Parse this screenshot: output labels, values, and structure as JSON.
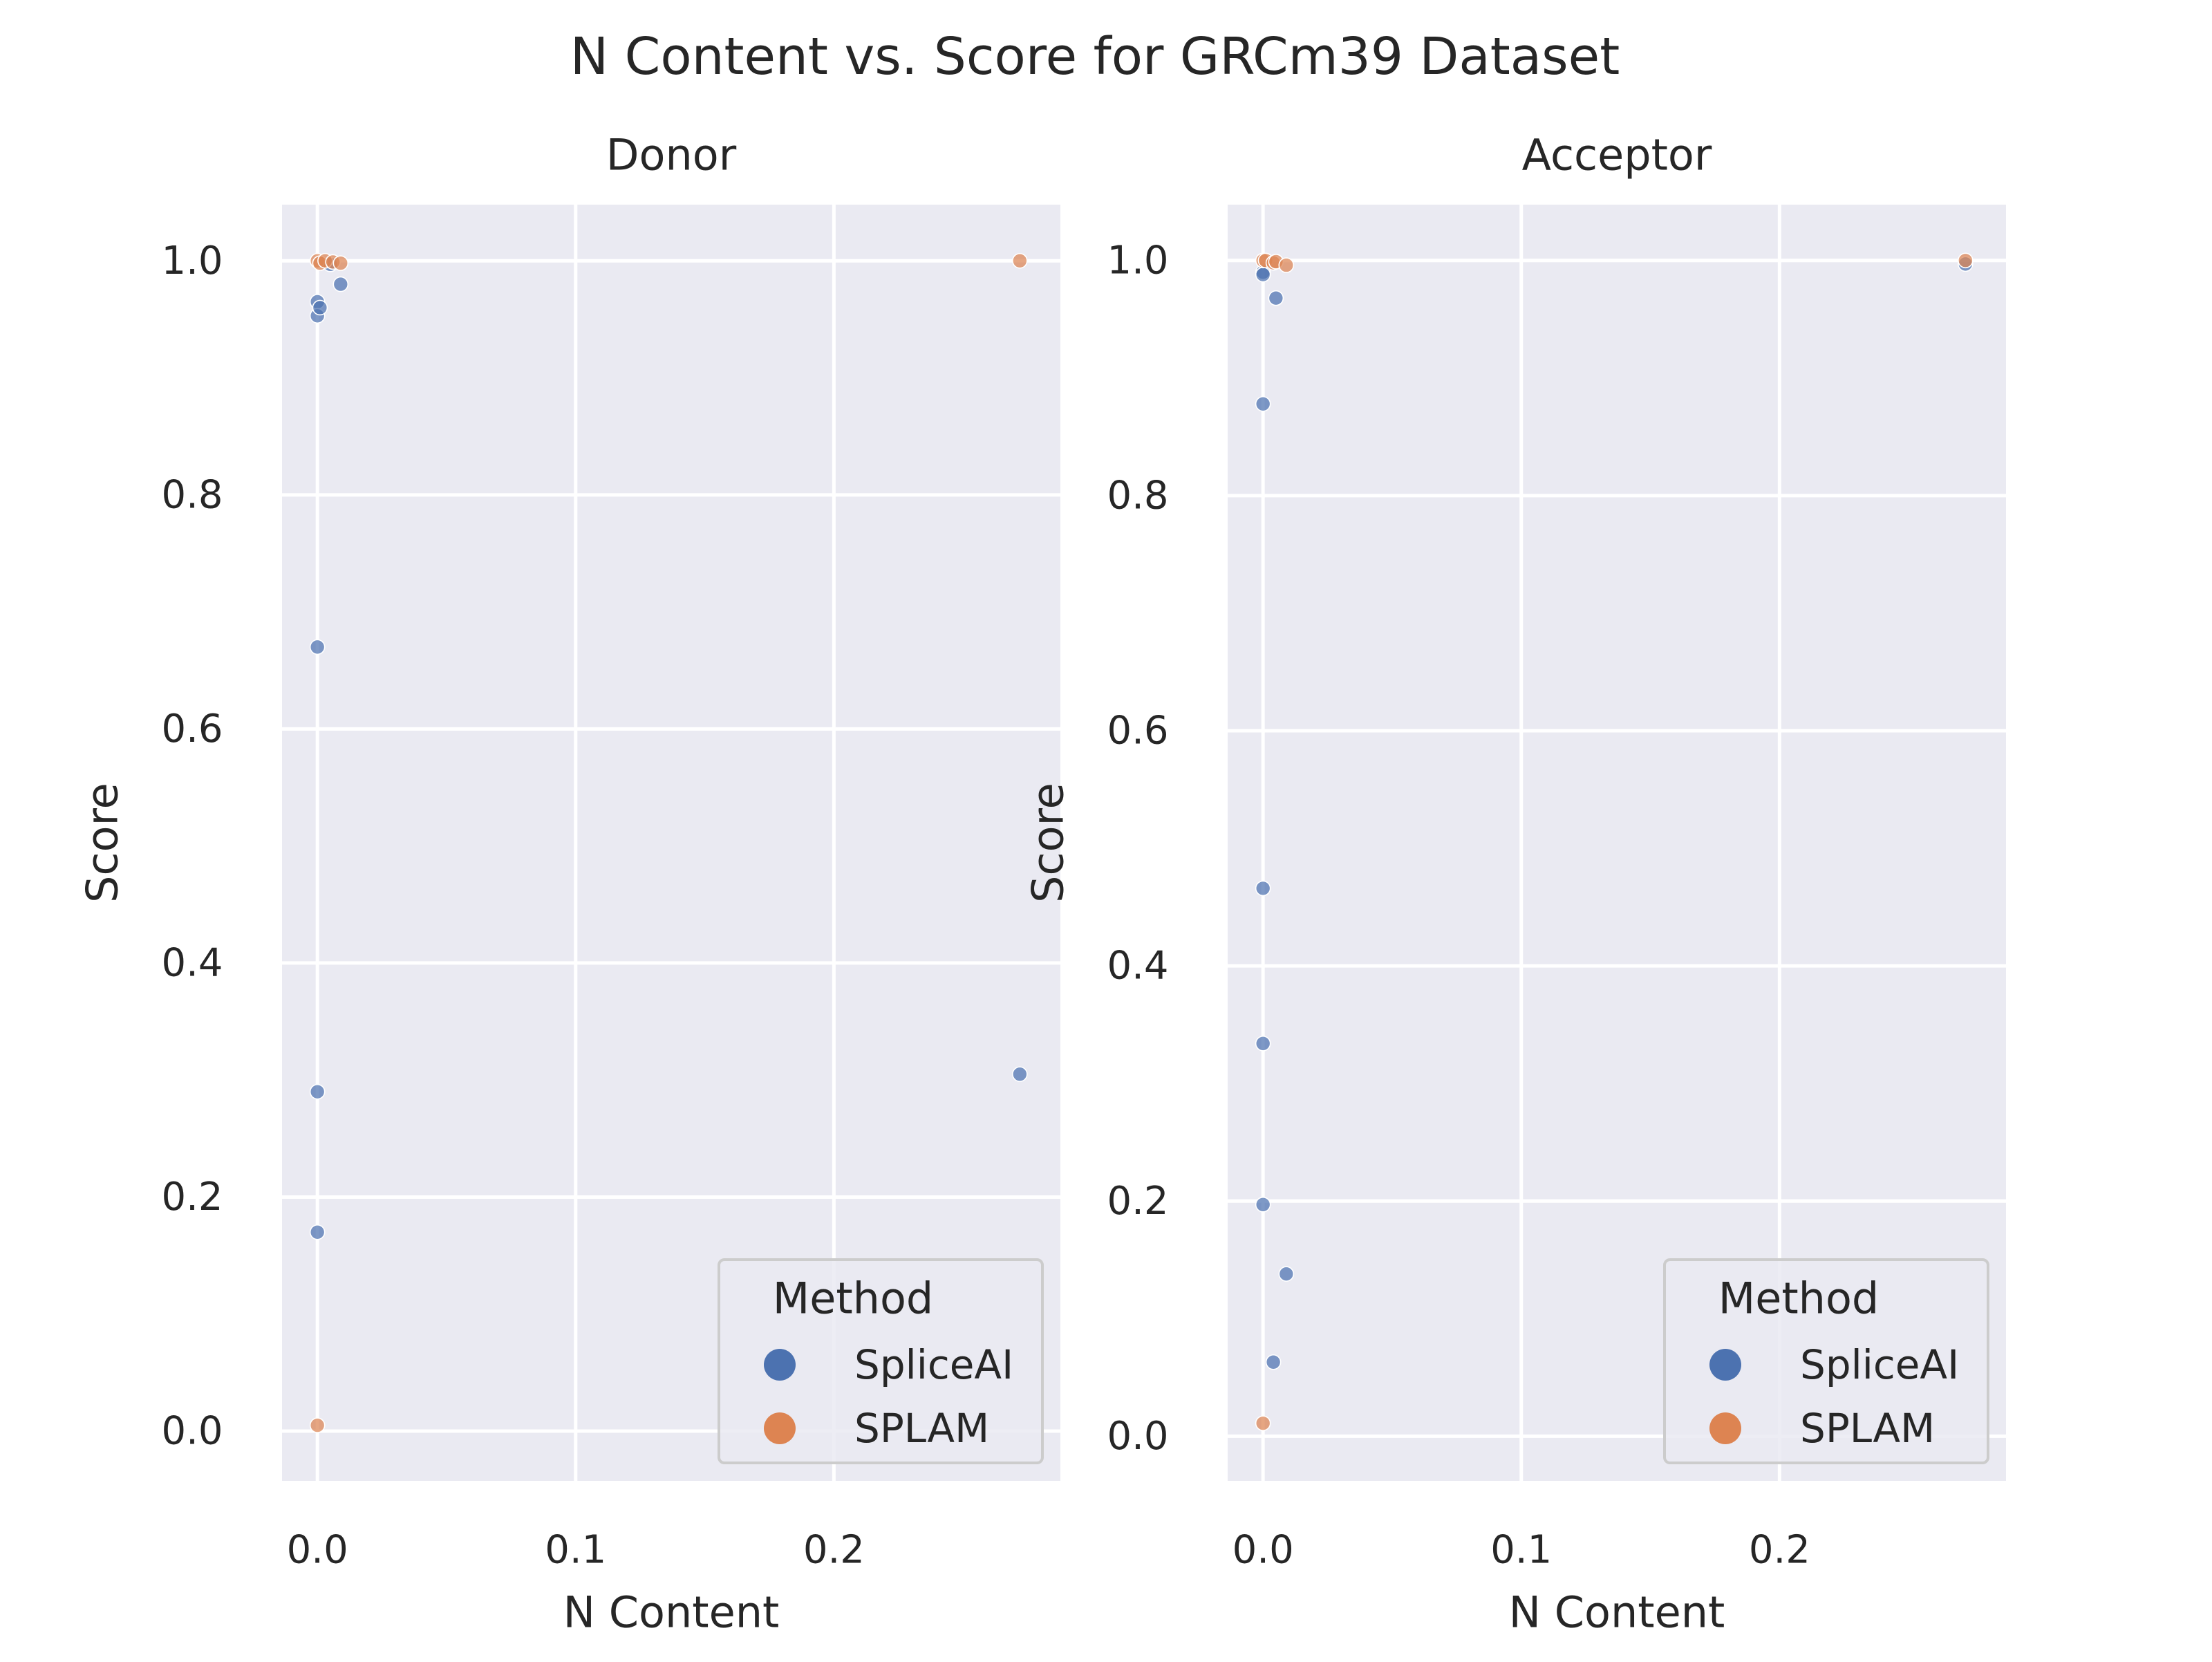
{
  "figure": {
    "title": "N Content vs. Score for GRCm39 Dataset"
  },
  "colors": {
    "SpliceAI": "#4c72b0",
    "SPLAM": "#dd8452",
    "panel_background": "#eaeaf2",
    "grid": "#ffffff",
    "text": "#262626"
  },
  "chart_data": [
    {
      "type": "scatter",
      "title": "Donor",
      "xlabel": "N Content",
      "ylabel": "Score",
      "xlim": [
        -0.0137,
        0.2877
      ],
      "ylim": [
        -0.0425,
        1.048
      ],
      "xticks": [
        0.0,
        0.1,
        0.2
      ],
      "xtick_labels": [
        "0.0",
        "0.1",
        "0.2"
      ],
      "yticks": [
        0.0,
        0.2,
        0.4,
        0.6,
        0.8,
        1.0
      ],
      "ytick_labels": [
        "0.0",
        "0.2",
        "0.4",
        "0.6",
        "0.8",
        "1.0"
      ],
      "grid": true,
      "legend": {
        "title": "Method",
        "position": "lower-right",
        "entries": [
          "SpliceAI",
          "SPLAM"
        ]
      },
      "series": [
        {
          "name": "SpliceAI",
          "points": [
            [
              0.0,
              0.965
            ],
            [
              0.0,
              0.953
            ],
            [
              0.001,
              0.96
            ],
            [
              0.005,
              0.997
            ],
            [
              0.009,
              0.98
            ],
            [
              0.0,
              0.67
            ],
            [
              0.0,
              0.29
            ],
            [
              0.0,
              0.17
            ],
            [
              0.272,
              0.305
            ]
          ]
        },
        {
          "name": "SPLAM",
          "points": [
            [
              0.0,
              1.0
            ],
            [
              0.001,
              0.998
            ],
            [
              0.003,
              1.0
            ],
            [
              0.006,
              0.999
            ],
            [
              0.009,
              0.998
            ],
            [
              0.272,
              1.0
            ],
            [
              0.0,
              0.005
            ]
          ]
        }
      ]
    },
    {
      "type": "scatter",
      "title": "Acceptor",
      "xlabel": "N Content",
      "ylabel": "Score",
      "xlim": [
        -0.0137,
        0.2877
      ],
      "ylim": [
        -0.038,
        1.0475
      ],
      "xticks": [
        0.0,
        0.1,
        0.2
      ],
      "xtick_labels": [
        "0.0",
        "0.1",
        "0.2"
      ],
      "yticks": [
        0.0,
        0.2,
        0.4,
        0.6,
        0.8,
        1.0
      ],
      "ytick_labels": [
        "0.0",
        "0.2",
        "0.4",
        "0.6",
        "0.8",
        "1.0"
      ],
      "grid": true,
      "legend": {
        "title": "Method",
        "position": "lower-right",
        "entries": [
          "SpliceAI",
          "SPLAM"
        ]
      },
      "series": [
        {
          "name": "SpliceAI",
          "points": [
            [
              0.0,
              0.99
            ],
            [
              0.0,
              0.988
            ],
            [
              0.005,
              0.968
            ],
            [
              0.0,
              0.878
            ],
            [
              0.0,
              0.466
            ],
            [
              0.0,
              0.334
            ],
            [
              0.0,
              0.197
            ],
            [
              0.009,
              0.138
            ],
            [
              0.004,
              0.063
            ],
            [
              0.272,
              0.997
            ]
          ]
        },
        {
          "name": "SPLAM",
          "points": [
            [
              0.0,
              1.0
            ],
            [
              0.001,
              1.0
            ],
            [
              0.004,
              0.998
            ],
            [
              0.005,
              0.999
            ],
            [
              0.009,
              0.996
            ],
            [
              0.272,
              1.0
            ],
            [
              0.0,
              0.011
            ]
          ]
        }
      ]
    }
  ]
}
